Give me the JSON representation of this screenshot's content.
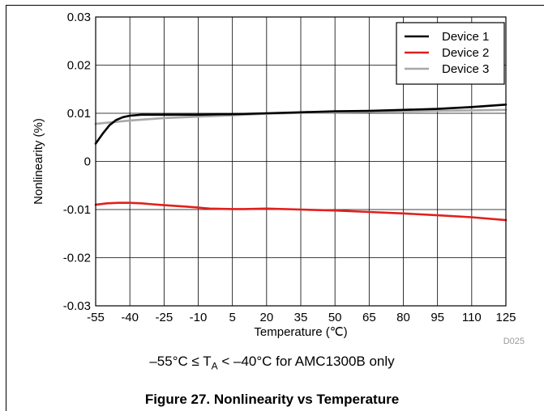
{
  "chart_data": {
    "type": "line",
    "xlabel": "Temperature (℃)",
    "ylabel": "Nonlinearity (%)",
    "xlim": [
      -55,
      125
    ],
    "ylim": [
      -0.03,
      0.03
    ],
    "xticks": [
      -55,
      -40,
      -25,
      -10,
      5,
      20,
      35,
      50,
      65,
      80,
      95,
      110,
      125
    ],
    "yticks": [
      -0.03,
      -0.02,
      -0.01,
      0,
      0.01,
      0.02,
      0.03
    ],
    "xtick_labels": [
      "-55",
      "-40",
      "-25",
      "-10",
      "5",
      "20",
      "35",
      "50",
      "65",
      "80",
      "95",
      "110",
      "125"
    ],
    "ytick_labels": [
      "-0.03",
      "-0.02",
      "-0.01",
      "0",
      "0.01",
      "0.02",
      "0.03"
    ],
    "grid": true,
    "legend_position": "top-right",
    "watermark": "D025",
    "series": [
      {
        "name": "Device 1",
        "color": "#000000",
        "x": [
          -55,
          -52,
          -49,
          -46,
          -43,
          -40,
          -35,
          -30,
          -25,
          -20,
          -10,
          0,
          5,
          20,
          35,
          50,
          65,
          80,
          95,
          110,
          125
        ],
        "y": [
          0.0037,
          0.0057,
          0.0075,
          0.0086,
          0.0092,
          0.0095,
          0.0097,
          0.0097,
          0.0097,
          0.0097,
          0.0097,
          0.0098,
          0.0098,
          0.01,
          0.0102,
          0.0104,
          0.0105,
          0.0107,
          0.0109,
          0.0113,
          0.0118
        ]
      },
      {
        "name": "Device 2",
        "color": "#e0201c",
        "x": [
          -55,
          -50,
          -45,
          -40,
          -35,
          -30,
          -25,
          -15,
          -10,
          -5,
          5,
          10,
          20,
          35,
          50,
          65,
          80,
          95,
          110,
          125
        ],
        "y": [
          -0.009,
          -0.0087,
          -0.0086,
          -0.0086,
          -0.0087,
          -0.0089,
          -0.0091,
          -0.0094,
          -0.0096,
          -0.0098,
          -0.0099,
          -0.0099,
          -0.0098,
          -0.01,
          -0.0102,
          -0.0105,
          -0.0108,
          -0.0112,
          -0.0116,
          -0.0122
        ]
      },
      {
        "name": "Device 3",
        "color": "#a8a8a8",
        "x": [
          -55,
          -40,
          -25,
          -10,
          5,
          20,
          35,
          50,
          65,
          80,
          95,
          110,
          125
        ],
        "y": [
          0.0078,
          0.0085,
          0.009,
          0.0093,
          0.0096,
          0.0099,
          0.0101,
          0.0102,
          0.0103,
          0.0104,
          0.0105,
          0.0106,
          0.0107
        ]
      }
    ]
  },
  "note": {
    "prefix": "–55°C ≤ T",
    "subscript": "A",
    "suffix": " < –40°C for AMC1300B only"
  },
  "caption": "Figure 27. Nonlinearity vs Temperature"
}
